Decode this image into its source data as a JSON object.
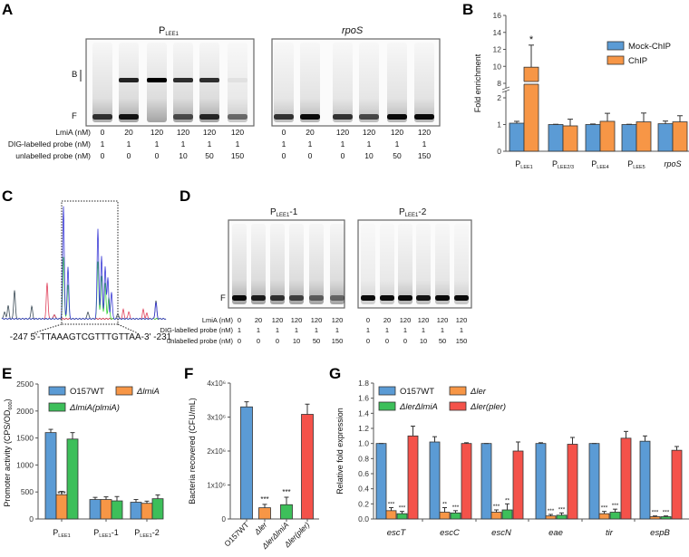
{
  "panel_labels": [
    "A",
    "B",
    "C",
    "D",
    "E",
    "F",
    "G"
  ],
  "panel_a": {
    "gels": [
      {
        "title_main": "P",
        "title_sub": "LEE1",
        "italic": false
      },
      {
        "title_main": "rpoS",
        "title_sub": "",
        "italic": true
      }
    ],
    "band_labels": {
      "bound": "B",
      "free": "F"
    },
    "rows": [
      {
        "label": "LmiA (nM)",
        "values": [
          "0",
          "20",
          "120",
          "120",
          "120",
          "120"
        ]
      },
      {
        "label": "DIG-labelled probe (nM)",
        "values": [
          "1",
          "1",
          "1",
          "1",
          "1",
          "1"
        ]
      },
      {
        "label": "unlabelled probe (nM)",
        "values": [
          "0",
          "0",
          "0",
          "10",
          "50",
          "150"
        ]
      }
    ]
  },
  "panel_c": {
    "sequence": "-247 5'-TTAAAGTCGTTTGTTAA-3' -231",
    "trace_colors": {
      "blue": "#3b3bd6",
      "green": "#39d039",
      "red": "#e0405a",
      "black": "#3a4a55"
    }
  },
  "panel_d": {
    "gels": [
      {
        "title_main": "P",
        "title_sub": "LEE1",
        "title_suffix": "-1"
      },
      {
        "title_main": "P",
        "title_sub": "LEE1",
        "title_suffix": "-2"
      }
    ],
    "band_labels": {
      "free": "F"
    },
    "rows": [
      {
        "label": "LmiA (nM)",
        "values": [
          "0",
          "20",
          "120",
          "120",
          "120",
          "120"
        ]
      },
      {
        "label": "DIG-labelled probe (nM)",
        "values": [
          "1",
          "1",
          "1",
          "1",
          "1",
          "1"
        ]
      },
      {
        "label": "unlabelled probe (nM)",
        "values": [
          "0",
          "0",
          "0",
          "10",
          "50",
          "150"
        ]
      }
    ]
  },
  "chart_data": [
    {
      "panel": "B",
      "type": "bar",
      "ylabel": "Fold enrichment",
      "yticks": [
        "0",
        "1",
        "2",
        "8",
        "10",
        "12",
        "14",
        "16"
      ],
      "ytick_values": [
        0,
        1,
        2,
        8,
        10,
        12,
        14,
        16
      ],
      "axis_break": [
        2,
        8
      ],
      "ylim": [
        0,
        16
      ],
      "legend_placement": "top-right",
      "categories": [
        {
          "main": "P",
          "sub": "LEE1",
          "italic": false
        },
        {
          "main": "P",
          "sub": "LEE2/3",
          "italic": false
        },
        {
          "main": "P",
          "sub": "LEE4",
          "italic": false
        },
        {
          "main": "P",
          "sub": "LEE5",
          "italic": false
        },
        {
          "main": "rpoS",
          "sub": "",
          "italic": true
        }
      ],
      "series": [
        {
          "name": "Mock-ChIP",
          "color": "#5b9bd5",
          "values": [
            1.05,
            1.0,
            1.0,
            1.0,
            1.03
          ],
          "errors": [
            0.07,
            0.01,
            0.02,
            0.01,
            0.1
          ],
          "annotations": [
            "",
            "",
            "",
            "",
            ""
          ]
        },
        {
          "name": "ChIP",
          "color": "#f79646",
          "values": [
            9.9,
            0.95,
            1.12,
            1.1,
            1.1
          ],
          "errors": [
            2.6,
            0.25,
            0.3,
            0.33,
            0.23
          ],
          "annotations": [
            "*",
            "",
            "",
            "",
            ""
          ]
        }
      ]
    },
    {
      "panel": "E",
      "type": "bar",
      "ylabel_main": "Promoter activity (CPS/OD",
      "ylabel_sub": "600",
      "ylabel_end": ")",
      "yticks": [
        "0",
        "500",
        "1000",
        "1500",
        "2000",
        "2500"
      ],
      "ytick_values": [
        0,
        500,
        1000,
        1500,
        2000,
        2500
      ],
      "ylim": [
        0,
        2500
      ],
      "legend_placement": "top",
      "categories": [
        {
          "main": "P",
          "sub": "LEE1",
          "suffix": ""
        },
        {
          "main": "P",
          "sub": "LEE1",
          "suffix": "-1"
        },
        {
          "main": "P",
          "sub": "LEE1",
          "suffix": "-2"
        }
      ],
      "series": [
        {
          "name": "O157WT",
          "color": "#5b9bd5",
          "values": [
            1600,
            360,
            310
          ],
          "errors": [
            60,
            40,
            50
          ],
          "annotations": [
            "",
            "",
            ""
          ]
        },
        {
          "name": "ΔlmiA",
          "color": "#f79646",
          "values": [
            450,
            360,
            290
          ],
          "errors": [
            60,
            50,
            40
          ],
          "annotations": [
            "***",
            "",
            ""
          ]
        },
        {
          "name": "ΔlmiA(plmiA)",
          "color": "#3dbf5a",
          "values": [
            1480,
            335,
            375
          ],
          "errors": [
            120,
            80,
            70
          ],
          "annotations": [
            "",
            "",
            ""
          ]
        }
      ]
    },
    {
      "panel": "F",
      "type": "bar",
      "ylabel": "Bacteria recovered (CFU/mL)",
      "yticks": [
        "0",
        "1x10⁶",
        "2x10⁶",
        "3x10⁶",
        "4x10⁶"
      ],
      "ytick_values": [
        0,
        1000000,
        2000000,
        3000000,
        4000000
      ],
      "ylim": [
        0,
        4000000
      ],
      "categories": [
        "O157WT",
        "Δler",
        "ΔlerΔlmiA",
        "Δler(pler)"
      ],
      "colors": [
        "#5b9bd5",
        "#f79646",
        "#3dbf5a",
        "#f4524a"
      ],
      "values": [
        3300000,
        330000,
        420000,
        3080000
      ],
      "errors": [
        150000,
        100000,
        220000,
        300000
      ],
      "annotations": [
        "",
        "***",
        "***",
        ""
      ]
    },
    {
      "panel": "G",
      "type": "bar",
      "ylabel": "Relative fold expression",
      "yticks": [
        "0.0",
        "0.2",
        "0.4",
        "0.6",
        "0.8",
        "1.0",
        "1.2",
        "1.4",
        "1.6",
        "1.8"
      ],
      "ytick_values": [
        0,
        0.2,
        0.4,
        0.6,
        0.8,
        1.0,
        1.2,
        1.4,
        1.6,
        1.8
      ],
      "ylim": [
        0,
        1.8
      ],
      "legend_placement": "top-left",
      "categories": [
        "escT",
        "escC",
        "escN",
        "eae",
        "tir",
        "espB"
      ],
      "series": [
        {
          "name": "O157WT",
          "color": "#5b9bd5",
          "values": [
            1.0,
            1.02,
            1.0,
            1.0,
            1.0,
            1.03
          ],
          "errors": [
            0.0,
            0.07,
            0.0,
            0.01,
            0.0,
            0.07
          ],
          "annotations": [
            "",
            "",
            "",
            "",
            "",
            ""
          ]
        },
        {
          "name": "Δler",
          "color": "#f79646",
          "values": [
            0.11,
            0.09,
            0.09,
            0.04,
            0.07,
            0.03
          ],
          "errors": [
            0.04,
            0.06,
            0.03,
            0.02,
            0.03,
            0.01
          ],
          "annotations": [
            "***",
            "**",
            "***",
            "***",
            "***",
            "***"
          ]
        },
        {
          "name": "ΔlerΔlmiA",
          "color": "#3dbf5a",
          "values": [
            0.07,
            0.08,
            0.12,
            0.05,
            0.09,
            0.03
          ],
          "errors": [
            0.03,
            0.03,
            0.08,
            0.03,
            0.04,
            0.01
          ],
          "annotations": [
            "***",
            "***",
            "**",
            "***",
            "***",
            "***"
          ]
        },
        {
          "name": "Δler(pler)",
          "color": "#f4524a",
          "values": [
            1.1,
            1.0,
            0.9,
            0.99,
            1.07,
            0.91
          ],
          "errors": [
            0.13,
            0.01,
            0.12,
            0.09,
            0.09,
            0.05
          ],
          "annotations": [
            "",
            "",
            "",
            "",
            "",
            ""
          ]
        }
      ]
    }
  ]
}
